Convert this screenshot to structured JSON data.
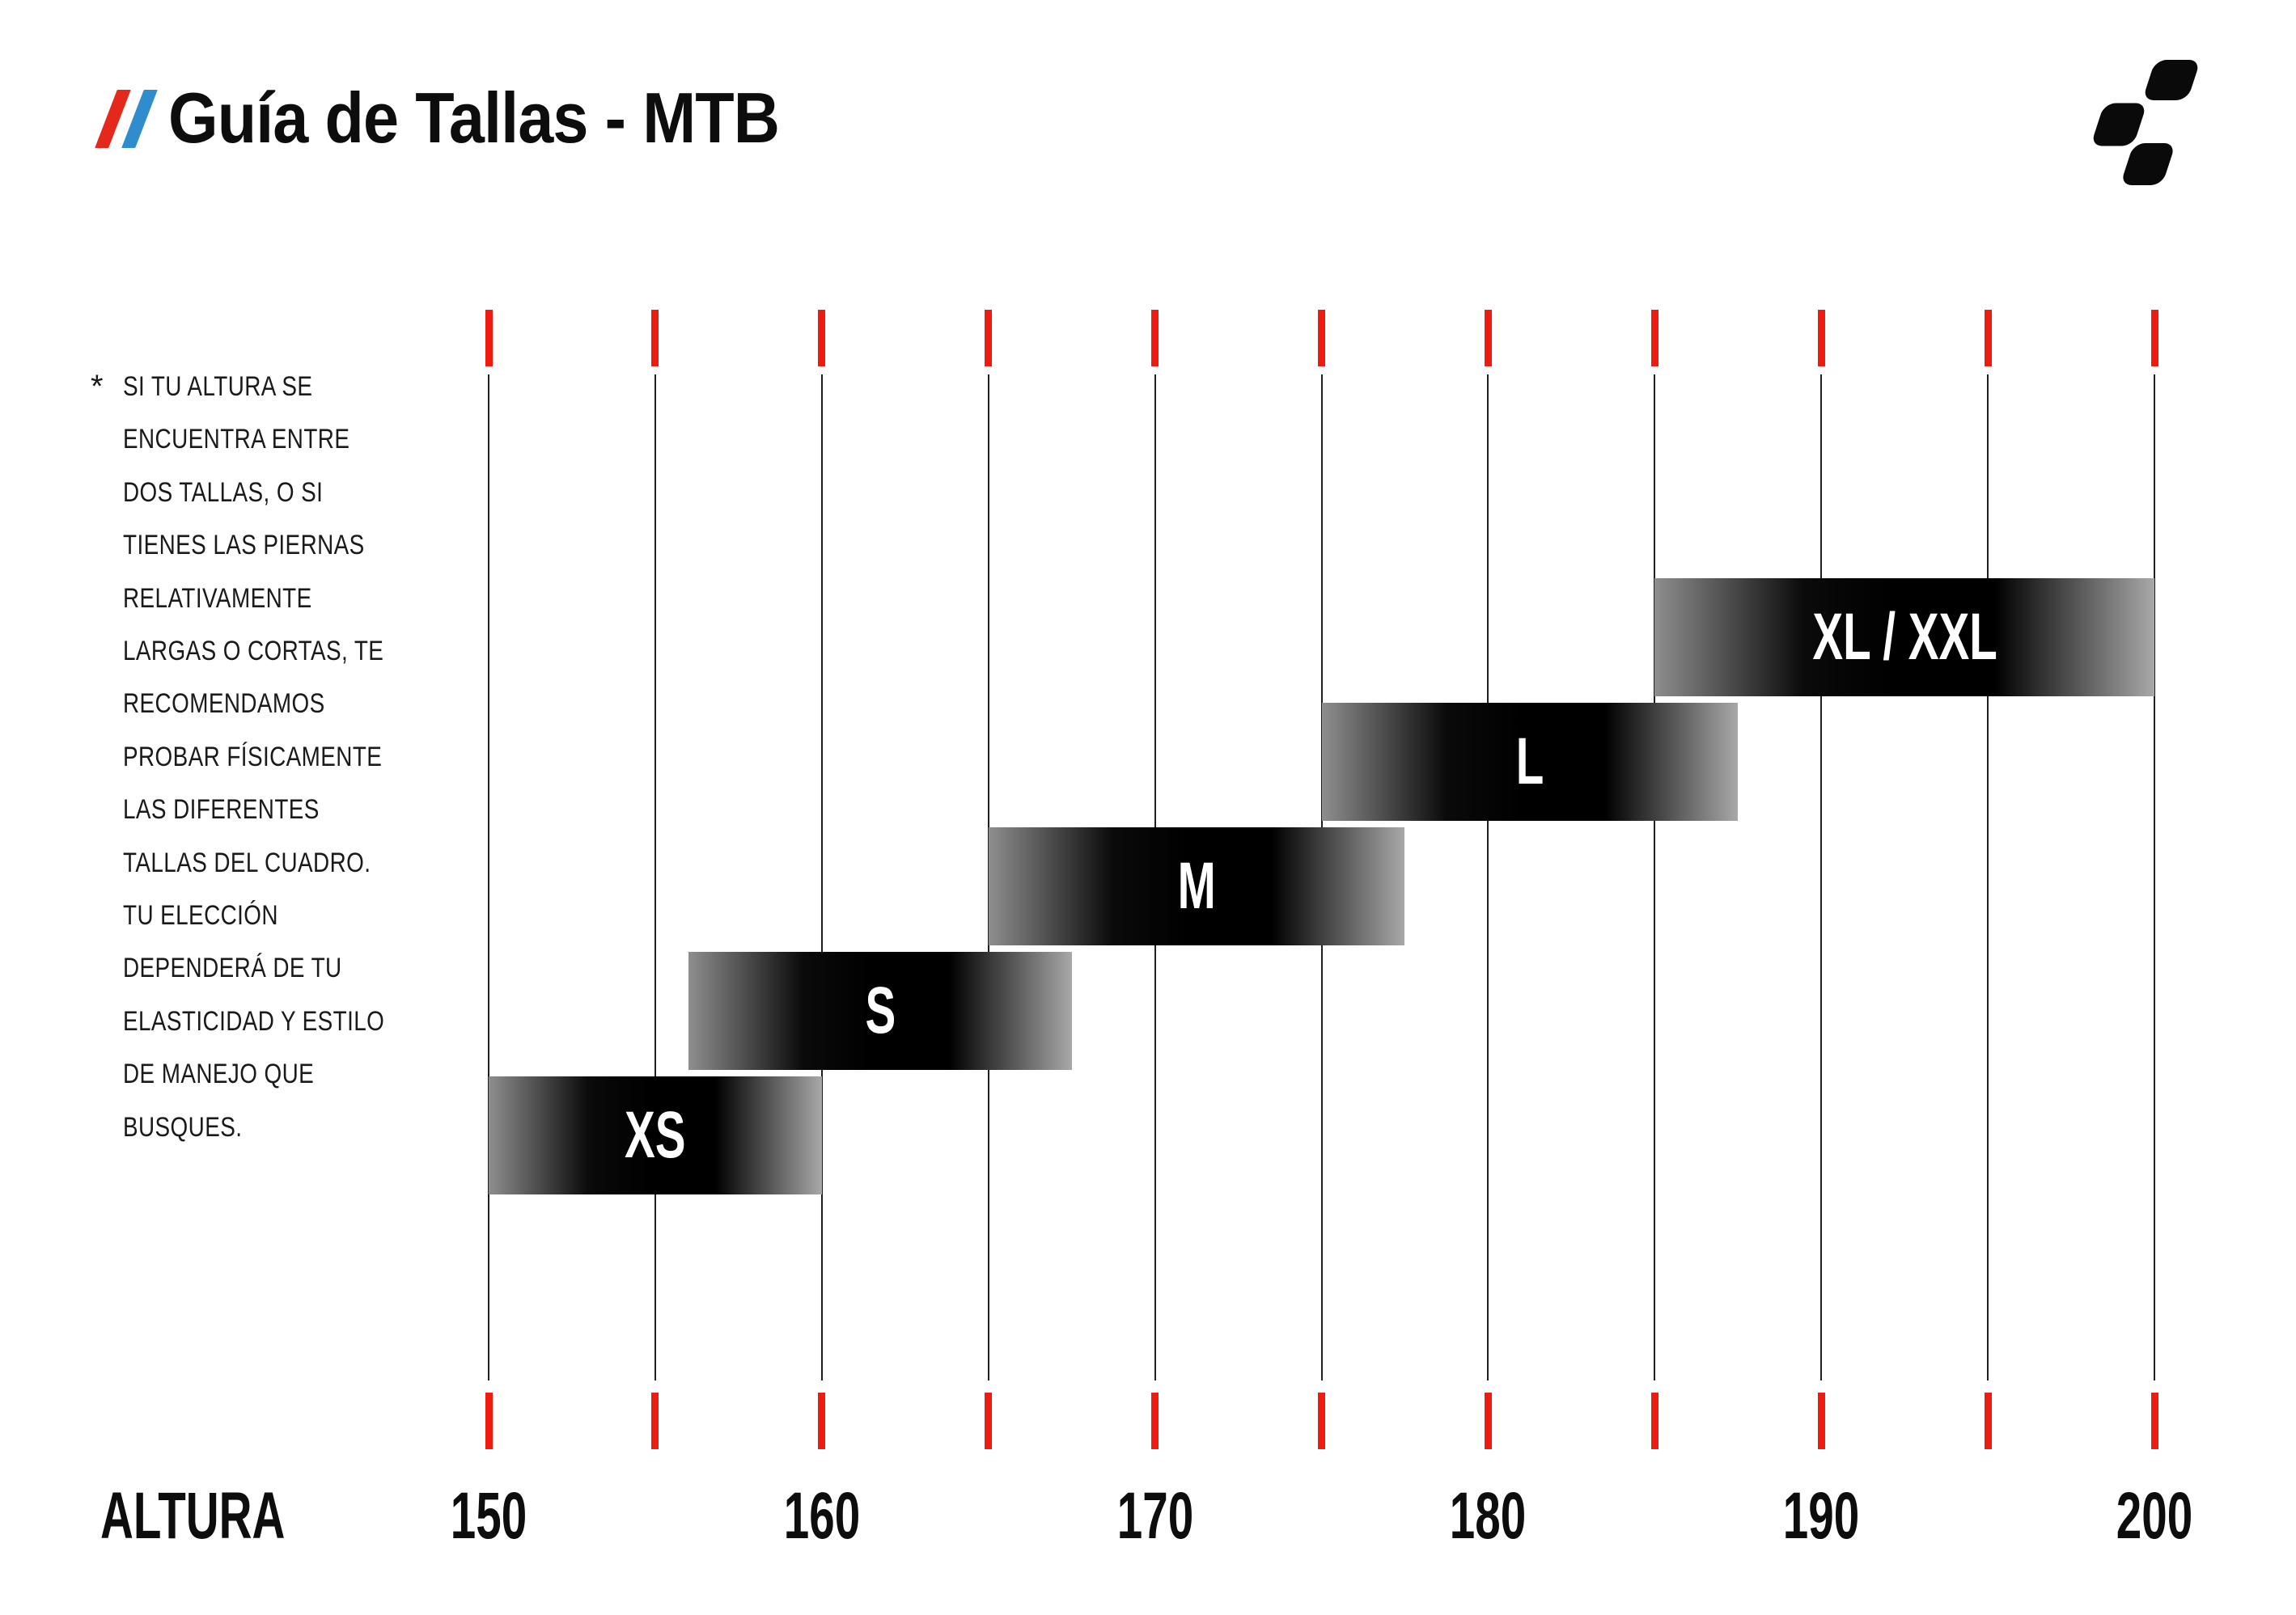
{
  "header": {
    "title": "Guía de Tallas - MTB"
  },
  "logo": {
    "name": "cube-logo",
    "color": "#0a0a0a"
  },
  "note": {
    "marker": "*",
    "lines": [
      "SI TU ALTURA SE",
      "ENCUENTRA ENTRE",
      "DOS TALLAS, O SI",
      "TIENES LAS PIERNAS",
      "RELATIVAMENTE",
      "LARGAS O CORTAS, TE",
      "RECOMENDAMOS",
      "PROBAR FÍSICAMENTE",
      "LAS DIFERENTES",
      "TALLAS DEL CUADRO.",
      "TU ELECCIÓN",
      "DEPENDERÁ DE TU",
      "ELASTICIDAD Y ESTILO",
      "DE MANEJO QUE",
      "BUSQUES."
    ]
  },
  "axis": {
    "label": "ALTURA",
    "tick_labels": [
      150,
      160,
      170,
      180,
      190,
      200
    ]
  },
  "colors": {
    "tick_red": "#ee1b10",
    "slash_red": "#e5281c",
    "slash_blue": "#2f8dcd",
    "bar_black": "#000000",
    "bar_edge_gray_left": "#8e8e8e",
    "bar_edge_gray_right": "#a8a8a8",
    "text": "#0d0d0d"
  },
  "chart_data": {
    "type": "bar",
    "orientation": "horizontal-range",
    "title": "Guía de Tallas - MTB",
    "xlabel": "ALTURA",
    "xlim": [
      150,
      200
    ],
    "x_tick_step": 5,
    "x_ticks": [
      150,
      155,
      160,
      165,
      170,
      175,
      180,
      185,
      190,
      195,
      200
    ],
    "x_labeled_ticks": [
      150,
      160,
      170,
      180,
      190,
      200
    ],
    "grid": "vertical-lines",
    "legend": "none",
    "series": [
      {
        "name": "XS",
        "range": [
          150,
          160
        ]
      },
      {
        "name": "S",
        "range": [
          156,
          167.5
        ]
      },
      {
        "name": "M",
        "range": [
          165,
          177.5
        ]
      },
      {
        "name": "L",
        "range": [
          175,
          187.5
        ]
      },
      {
        "name": "XL / XXL",
        "range": [
          185,
          200
        ]
      }
    ]
  }
}
